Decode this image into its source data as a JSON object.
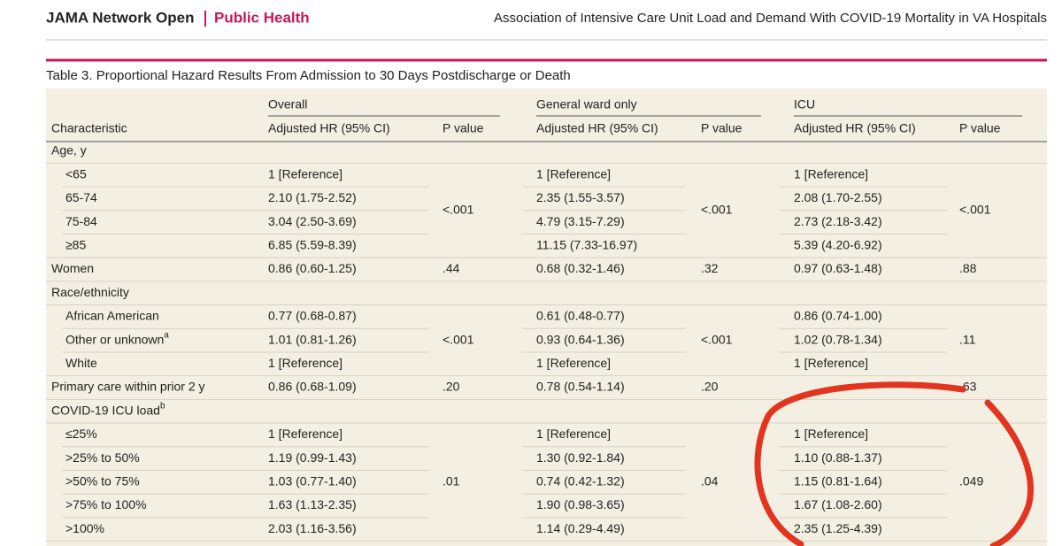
{
  "header": {
    "journal": "JAMA Network Open",
    "section": "Public Health",
    "article_title": "Association of Intensive Care Unit Load and Demand With COVID-19 Mortality in VA Hospitals"
  },
  "table": {
    "caption": "Table 3. Proportional Hazard Results From Admission to 30 Days Postdischarge or Death",
    "groups": [
      "Overall",
      "General ward only",
      "ICU"
    ],
    "columns": [
      "Characteristic",
      "Adjusted HR (95% CI)",
      "P value",
      "Adjusted HR (95% CI)",
      "P value",
      "Adjusted HR (95% CI)",
      "P value"
    ],
    "blocks": [
      {
        "label": "Age, y",
        "rows": [
          {
            "label": "<65",
            "hr": [
              "1 [Reference]",
              "1 [Reference]",
              "1 [Reference]"
            ]
          },
          {
            "label": "65-74",
            "hr": [
              "2.10 (1.75-2.52)",
              "2.35 (1.55-3.57)",
              "2.08 (1.70-2.55)"
            ]
          },
          {
            "label": "75-84",
            "hr": [
              "3.04 (2.50-3.69)",
              "4.79 (3.15-7.29)",
              "2.73 (2.18-3.42)"
            ]
          },
          {
            "label": "≥85",
            "hr": [
              "6.85 (5.59-8.39)",
              "11.15 (7.33-16.97)",
              "5.39 (4.20-6.92)"
            ]
          }
        ],
        "p": [
          "<.001",
          "<.001",
          "<.001"
        ]
      },
      {
        "label": "Women",
        "hr": [
          "0.86 (0.60-1.25)",
          "0.68 (0.32-1.46)",
          "0.97 (0.63-1.48)"
        ],
        "p": [
          ".44",
          ".32",
          ".88"
        ]
      },
      {
        "label": "Race/ethnicity",
        "rows": [
          {
            "label": "African American",
            "hr": [
              "0.77 (0.68-0.87)",
              "0.61 (0.48-0.77)",
              "0.86 (0.74-1.00)"
            ]
          },
          {
            "label": "Other or unknown",
            "note": "a",
            "hr": [
              "1.01 (0.81-1.26)",
              "0.93 (0.64-1.36)",
              "1.02 (0.78-1.34)"
            ]
          },
          {
            "label": "White",
            "hr": [
              "1 [Reference]",
              "1 [Reference]",
              "1 [Reference]"
            ]
          }
        ],
        "p": [
          "<.001",
          "<.001",
          ".11"
        ]
      },
      {
        "label": "Primary care within prior 2 y",
        "hr": [
          "0.86 (0.68-1.09)",
          "0.78 (0.54-1.14)",
          null
        ],
        "p": [
          ".20",
          ".20",
          ".63"
        ]
      },
      {
        "label": "COVID-19 ICU load",
        "note": "b",
        "rows": [
          {
            "label": "≤25%",
            "hr": [
              "1 [Reference]",
              "1 [Reference]",
              "1 [Reference]"
            ]
          },
          {
            "label": ">25% to 50%",
            "hr": [
              "1.19 (0.99-1.43)",
              "1.30 (0.92-1.84)",
              "1.10 (0.88-1.37)"
            ]
          },
          {
            "label": ">50% to 75%",
            "hr": [
              "1.03 (0.77-1.40)",
              "0.74 (0.42-1.32)",
              "1.15 (0.81-1.64)"
            ]
          },
          {
            "label": ">75% to 100%",
            "hr": [
              "1.63 (1.13-2.35)",
              "1.90 (0.98-3.65)",
              "1.67 (1.08-2.60)"
            ]
          },
          {
            "label": ">100%",
            "hr": [
              "2.03 (1.16-3.56)",
              "1.14 (0.29-4.49)",
              "2.35 (1.25-4.39)"
            ]
          }
        ],
        "p": [
          ".01",
          ".04",
          ".049"
        ]
      }
    ]
  }
}
